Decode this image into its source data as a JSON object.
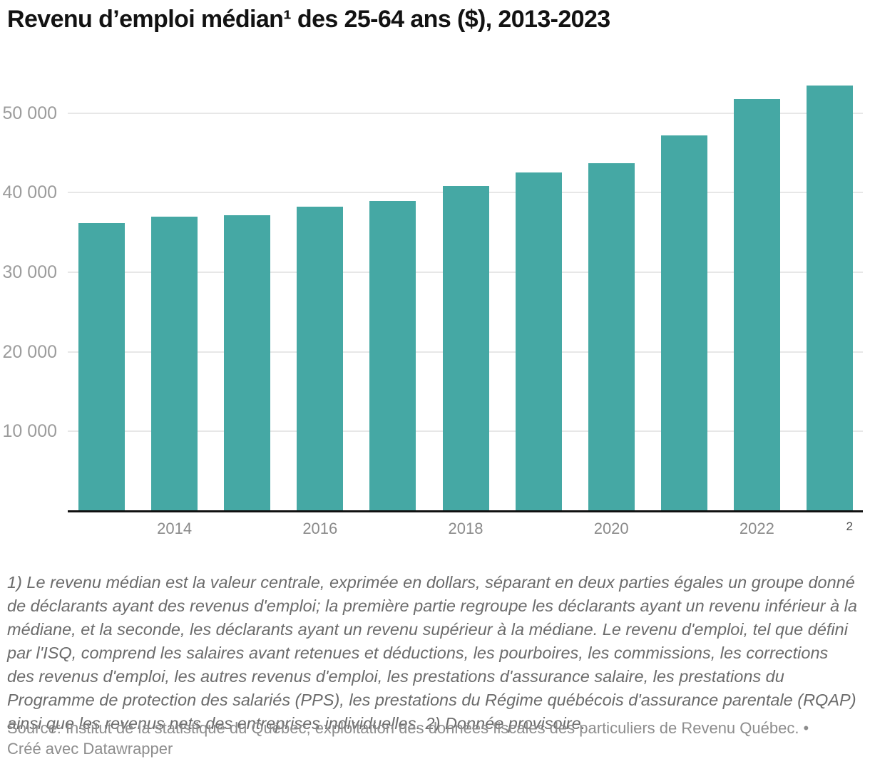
{
  "title": "Revenu d’emploi médian¹ des 25-64 ans ($), 2013-2023",
  "chart_data": {
    "type": "bar",
    "title": "Revenu d'emploi médian des 25-64 ans ($), 2013-2023",
    "categories": [
      2013,
      2014,
      2015,
      2016,
      2017,
      2018,
      2019,
      2020,
      2021,
      2022,
      2023
    ],
    "values": [
      36200,
      37000,
      37200,
      38200,
      39000,
      40800,
      42500,
      43700,
      47200,
      51800,
      53500
    ],
    "xlabel": "",
    "ylabel": "",
    "ylim": [
      0,
      53500
    ],
    "grid": "horizontal",
    "legend": "none",
    "bar_color": "#45a8a4",
    "y_ticks": [
      {
        "label": "10 000",
        "value": 10000
      },
      {
        "label": "20 000",
        "value": 20000
      },
      {
        "label": "30 000",
        "value": 30000
      },
      {
        "label": "40 000",
        "value": 40000
      },
      {
        "label": "50 000",
        "value": 50000
      }
    ],
    "x_ticks": [
      {
        "label": "2014",
        "bar_index": 1
      },
      {
        "label": "2016",
        "bar_index": 3
      },
      {
        "label": "2018",
        "bar_index": 5
      },
      {
        "label": "2020",
        "bar_index": 7
      },
      {
        "label": "2022",
        "bar_index": 9
      }
    ],
    "provisional_marker": "2",
    "provisional_year": 2023
  },
  "notes": "1) Le revenu médian est la valeur centrale, exprimée en dollars, séparant en deux parties égales un groupe donné de déclarants ayant des revenus d'emploi; la première partie regroupe les déclarants ayant un revenu inférieur à la médiane, et la seconde, les déclarants ayant un revenu supérieur à la médiane. Le revenu d'emploi, tel que défini par l'ISQ, comprend les salaires avant retenues et déductions, les pourboires, les commissions, les corrections des revenus d'emploi, les autres revenus d'emploi, les prestations d'assurance salaire, les prestations du Programme de protection des salariés (PPS), les prestations du Régime québécois d'assurance parentale (RQAP) ainsi que les revenus nets des entreprises individuelles. 2) Donnée provisoire.",
  "source": "Source: Institut de la statistique du Québec, exploitation des données fiscales des particuliers de Revenu Québec. • Créé avec Datawrapper"
}
